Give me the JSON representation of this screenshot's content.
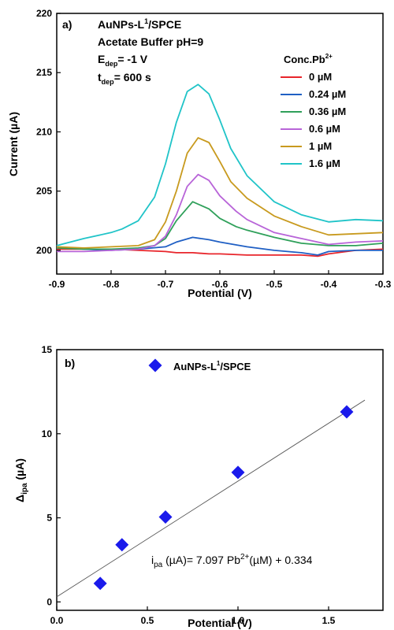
{
  "chart_data": [
    {
      "type": "line",
      "panel_label": "a)",
      "annotations": [
        {
          "text": "AuNPs-L",
          "sup": "1",
          "tail": "/SPCE"
        },
        {
          "text": "Acetate Buffer pH=9"
        },
        {
          "text": "E",
          "sub": "dep",
          "tail": "= -1 V"
        },
        {
          "text": "t",
          "sub": "dep",
          "tail": "= 600 s"
        }
      ],
      "legend_title": "Conc.Pb",
      "legend_title_sup": "2+",
      "legend_position": "right",
      "xlabel": "Potential (V)",
      "ylabel": "Current (µA)",
      "xlim": [
        -0.9,
        -0.3
      ],
      "ylim": [
        198,
        220
      ],
      "xticks": [
        "-0.9",
        "-0.8",
        "-0.7",
        "-0.6",
        "-0.5",
        "-0.4",
        "-0.3"
      ],
      "yticks": [
        "200",
        "205",
        "210",
        "215",
        "220"
      ],
      "series": [
        {
          "name": "0 µM",
          "color": "#e8252b",
          "x": [
            -0.9,
            -0.85,
            -0.8,
            -0.75,
            -0.7,
            -0.68,
            -0.65,
            -0.62,
            -0.6,
            -0.55,
            -0.5,
            -0.45,
            -0.42,
            -0.4,
            -0.35,
            -0.3
          ],
          "y": [
            200.1,
            200.1,
            200.1,
            200.0,
            199.9,
            199.8,
            199.8,
            199.7,
            199.7,
            199.6,
            199.6,
            199.6,
            199.5,
            199.7,
            200.0,
            200.1
          ]
        },
        {
          "name": "0.24 µM",
          "color": "#1f5fc4",
          "x": [
            -0.9,
            -0.85,
            -0.8,
            -0.75,
            -0.7,
            -0.68,
            -0.65,
            -0.62,
            -0.6,
            -0.55,
            -0.5,
            -0.45,
            -0.42,
            -0.4,
            -0.35,
            -0.3
          ],
          "y": [
            200.3,
            200.1,
            200.0,
            200.1,
            200.3,
            200.7,
            201.1,
            200.9,
            200.7,
            200.3,
            200.0,
            199.8,
            199.6,
            199.9,
            200.0,
            200.0
          ]
        },
        {
          "name": "0.36 µM",
          "color": "#2fa05a",
          "x": [
            -0.9,
            -0.85,
            -0.8,
            -0.75,
            -0.72,
            -0.7,
            -0.68,
            -0.65,
            -0.62,
            -0.6,
            -0.57,
            -0.55,
            -0.5,
            -0.45,
            -0.4,
            -0.35,
            -0.3
          ],
          "y": [
            200.2,
            200.1,
            200.1,
            200.2,
            200.4,
            201.0,
            202.5,
            204.1,
            203.5,
            202.7,
            202.0,
            201.7,
            201.1,
            200.6,
            200.4,
            200.4,
            200.6
          ]
        },
        {
          "name": "0.6 µM",
          "color": "#b864d8",
          "x": [
            -0.9,
            -0.85,
            -0.8,
            -0.75,
            -0.72,
            -0.7,
            -0.68,
            -0.66,
            -0.64,
            -0.62,
            -0.6,
            -0.57,
            -0.55,
            -0.5,
            -0.45,
            -0.4,
            -0.35,
            -0.3
          ],
          "y": [
            199.9,
            199.9,
            200.0,
            200.1,
            200.4,
            201.2,
            203.0,
            205.4,
            206.4,
            205.9,
            204.6,
            203.3,
            202.6,
            201.5,
            201.0,
            200.5,
            200.7,
            200.8
          ]
        },
        {
          "name": "1 µM",
          "color": "#c89a1e",
          "x": [
            -0.9,
            -0.85,
            -0.8,
            -0.75,
            -0.72,
            -0.7,
            -0.68,
            -0.66,
            -0.64,
            -0.62,
            -0.6,
            -0.58,
            -0.55,
            -0.5,
            -0.45,
            -0.4,
            -0.35,
            -0.3
          ],
          "y": [
            200.3,
            200.2,
            200.3,
            200.4,
            200.9,
            202.4,
            205.0,
            208.2,
            209.5,
            209.1,
            207.5,
            205.8,
            204.4,
            202.9,
            202.0,
            201.3,
            201.4,
            201.5
          ]
        },
        {
          "name": "1.6 µM",
          "color": "#20c4c8",
          "x": [
            -0.9,
            -0.85,
            -0.8,
            -0.78,
            -0.75,
            -0.72,
            -0.7,
            -0.68,
            -0.66,
            -0.64,
            -0.62,
            -0.6,
            -0.58,
            -0.55,
            -0.5,
            -0.45,
            -0.4,
            -0.35,
            -0.3
          ],
          "y": [
            200.4,
            201.0,
            201.5,
            201.8,
            202.5,
            204.5,
            207.3,
            210.8,
            213.4,
            214.0,
            213.2,
            211.0,
            208.6,
            206.3,
            204.1,
            203.0,
            202.4,
            202.6,
            202.5
          ]
        }
      ]
    },
    {
      "type": "scatter",
      "panel_label": "b)",
      "legend_entry": {
        "text": "AuNPs-L",
        "sup": "1",
        "tail": "/SPCE"
      },
      "legend_position": "top-right",
      "xlabel": "Potential (V)",
      "ylabel_main": "Δ",
      "ylabel_sub": "ipa",
      "ylabel_tail": " (µA)",
      "xlim": [
        0.0,
        1.8
      ],
      "ylim": [
        -0.5,
        15
      ],
      "xticks": [
        "0.0",
        "0.5",
        "1.0",
        "1.5"
      ],
      "yticks": [
        "0",
        "5",
        "10",
        "15"
      ],
      "marker_color": "#1a1aeb",
      "points_x": [
        0.24,
        0.36,
        0.6,
        1.0,
        1.6
      ],
      "points_y": [
        1.1,
        3.4,
        5.05,
        7.7,
        11.3
      ],
      "fit_line": {
        "x": [
          0.0,
          1.7
        ],
        "y": [
          0.3,
          12.0
        ]
      },
      "equation": {
        "p1": "i",
        "p1sub": "pa",
        "p2": " (µA)= 7.097 Pb",
        "p2sup": "2+",
        "p3": "(µM)  + 0.334"
      }
    }
  ]
}
